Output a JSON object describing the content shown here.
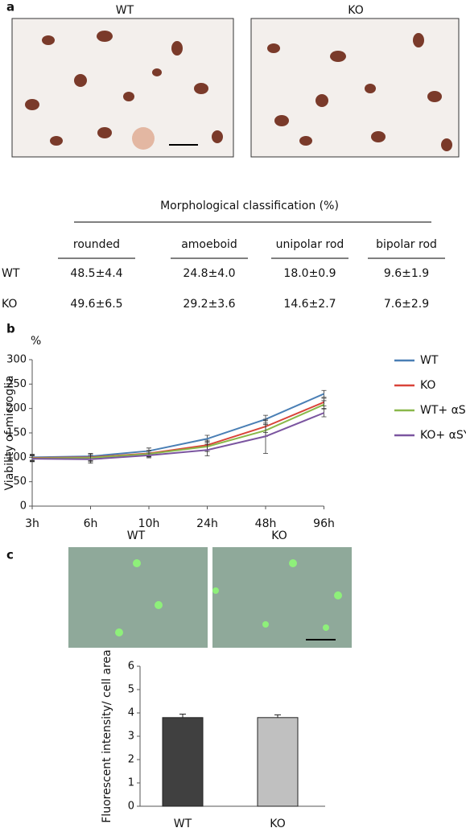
{
  "panels": [
    "a",
    "b",
    "c"
  ],
  "panel_a": {
    "image_labels": [
      "WT",
      "KO"
    ]
  },
  "table": {
    "title": "Morphological classification (%)",
    "columns": [
      "rounded",
      "amoeboid",
      "unipolar rod",
      "bipolar rod"
    ],
    "rows": [
      {
        "label": "WT",
        "values": [
          "48.5±4.4",
          "24.8±4.0",
          "18.0±0.9",
          "9.6±1.9"
        ]
      },
      {
        "label": "KO",
        "values": [
          "49.6±6.5",
          "29.2±3.6",
          "14.6±2.7",
          "7.6±2.9"
        ]
      }
    ]
  },
  "panel_c": {
    "image_labels": [
      "WT",
      "KO"
    ]
  },
  "chart_data": [
    {
      "type": "line",
      "y_label": "Viability of microglia",
      "y_unit_label": "%",
      "categories": [
        "3h",
        "6h",
        "10h",
        "24h",
        "48h",
        "96h"
      ],
      "ylim": [
        0,
        300
      ],
      "yticks": [
        0,
        50,
        100,
        150,
        200,
        250,
        300
      ],
      "series": [
        {
          "name": "WT",
          "color": "#4a7fb5",
          "values": [
            100,
            102,
            113,
            138,
            178,
            230
          ],
          "errors": [
            6,
            6,
            6,
            7,
            8,
            7
          ]
        },
        {
          "name": "KO",
          "color": "#d9443a",
          "values": [
            99,
            100,
            108,
            125,
            163,
            213
          ],
          "errors": [
            6,
            7,
            6,
            10,
            12,
            8
          ]
        },
        {
          "name": "WT+ αSYN",
          "color": "#8ab84a",
          "values": [
            98,
            99,
            107,
            122,
            155,
            208
          ],
          "errors": [
            6,
            8,
            6,
            10,
            12,
            8
          ]
        },
        {
          "name": "KO+ αSYN",
          "color": "#7b55a0",
          "values": [
            97,
            96,
            104,
            115,
            143,
            191
          ],
          "errors": [
            6,
            8,
            5,
            12,
            35,
            8
          ]
        }
      ]
    },
    {
      "type": "bar",
      "y_label": "Fluorescent intensity/ cell area",
      "categories": [
        "WT",
        "KO"
      ],
      "values": [
        3.8,
        3.8
      ],
      "errors": [
        0.15,
        0.12
      ],
      "colors": [
        "#404040",
        "#c0c0c0"
      ],
      "ylim": [
        0,
        6
      ],
      "yticks": [
        0,
        1,
        2,
        3,
        4,
        5,
        6
      ]
    }
  ]
}
